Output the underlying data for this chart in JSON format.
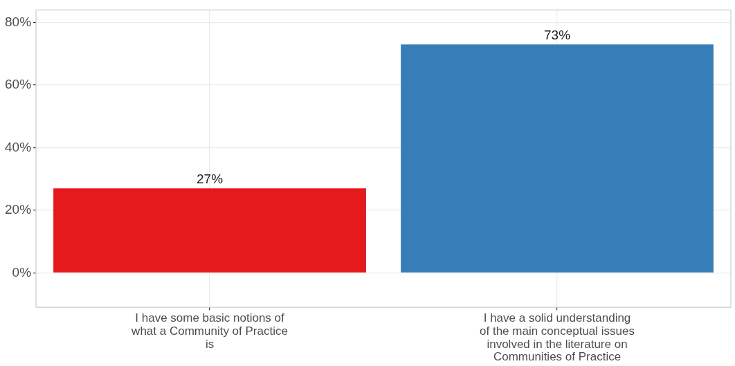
{
  "chart_data": {
    "type": "bar",
    "categories": [
      "I have some basic notions of what a Community of Practice is",
      "I have a solid understanding of the main conceptual issues involved in the literature on Communities of Practice"
    ],
    "values": [
      27,
      73
    ],
    "colors": [
      "#e41a1c",
      "#377eb8"
    ],
    "value_labels": [
      "27%",
      "73%"
    ],
    "ylim": [
      -11,
      84
    ],
    "yticks": [
      {
        "value": 0,
        "label": "0%"
      },
      {
        "value": 20,
        "label": "20%"
      },
      {
        "value": 40,
        "label": "40%"
      },
      {
        "value": 60,
        "label": "60%"
      },
      {
        "value": 80,
        "label": "80%"
      }
    ],
    "grid": true,
    "legend": false
  }
}
